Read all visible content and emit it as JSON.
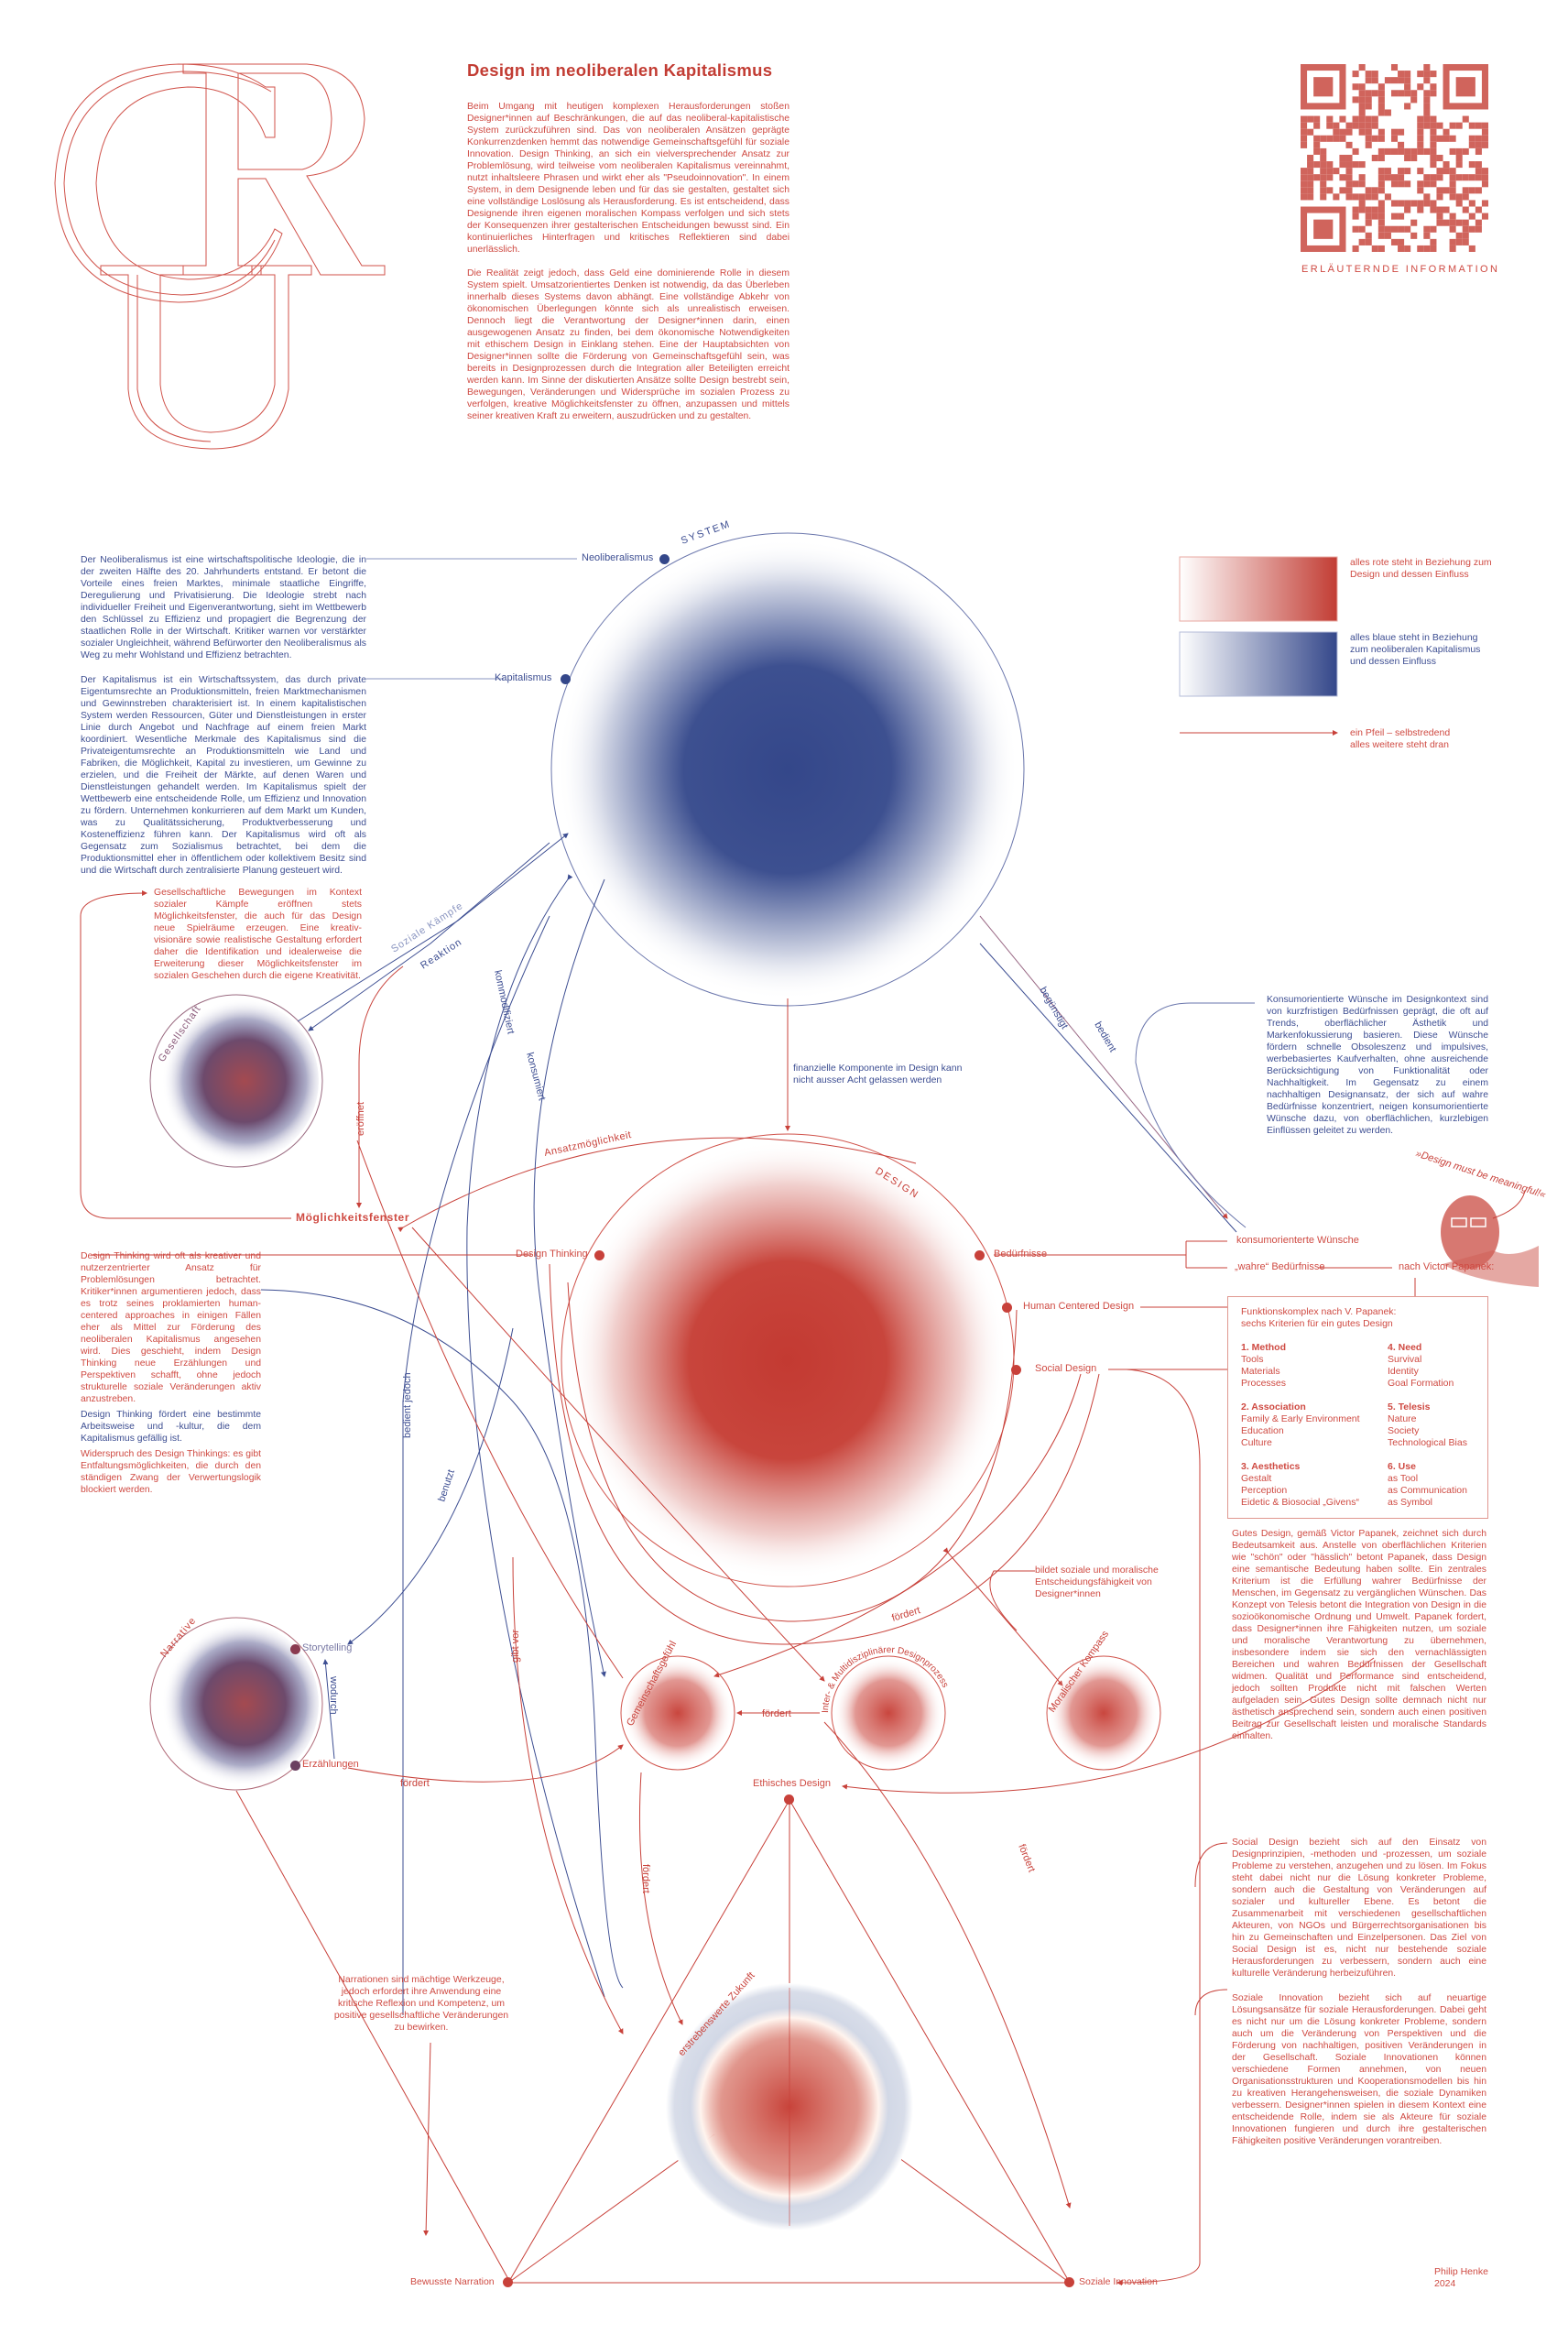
{
  "colors": {
    "red": "#c8413a",
    "blue": "#3d4e92",
    "red_light": "#e39a94",
    "blue_light": "#8a95c0"
  },
  "logo": {
    "letters": "CRU"
  },
  "header": {
    "title": "Design im neoliberalen Kapitalismus",
    "intro": [
      "Beim Umgang mit heutigen komplexen Herausforderungen stoßen Designer*innen auf Beschränkungen, die auf das neoliberal-kapitalistische System zurückzuführen sind. Das von neoliberalen Ansätzen geprägte Konkurrenzdenken hemmt das notwendige Gemeinschaftsgefühl für soziale Innovation. Design Thinking, an sich ein vielversprechender Ansatz zur Problemlösung, wird teilweise vom neoliberalen Kapitalismus vereinnahmt, nutzt inhaltsleere Phrasen und wirkt eher als \"Pseudoinnovation\". In einem System, in dem Designende leben und für das sie gestalten, gestaltet sich eine vollständige Loslösung als Herausforderung. Es ist entscheidend, dass Designende ihren eigenen moralischen Kompass verfolgen und sich stets der Konsequenzen ihrer gestalterischen Entscheidungen bewusst sind. Ein kontinuierliches Hinterfragen und kritisches Reflektieren sind dabei unerlässlich.",
      "Die Realität zeigt jedoch, dass Geld eine dominierende Rolle in diesem System spielt. Umsatzorientiertes Denken ist notwendig, da das Überleben innerhalb dieses Systems davon abhängt. Eine vollständige Abkehr von ökonomischen Überlegungen könnte sich als unrealistisch erweisen. Dennoch liegt die Verantwortung der Designer*innen darin, einen ausgewogenen Ansatz zu finden, bei dem ökonomische Notwendigkeiten mit ethischem Design in Einklang stehen. Eine der Hauptabsichten von Designer*innen sollte die Förderung von Gemeinschaftsgefühl sein, was bereits in Designprozessen durch die Integration aller Beteiligten erreicht werden kann. Im Sinne der diskutierten Ansätze sollte Design bestrebt sein, Bewegungen, Veränderungen und Widersprüche im sozialen Prozess zu verfolgen, kreative Möglichkeitsfenster zu öffnen, anzupassen und mittels seiner kreativen Kraft zu erweitern, auszudrücken und zu gestalten."
    ]
  },
  "qr": {
    "label": "ERLÄUTERNDE   INFORMATION"
  },
  "legend": {
    "red": "alles rote steht in Beziehung zum Design und dessen Einfluss",
    "blue": "alles blaue steht in Beziehung zum neoliberalen Kapitalismus und dessen Einfluss",
    "arrow": "ein Pfeil – selbstredend alles weitere steht dran"
  },
  "system": {
    "label": "SYSTEM",
    "nodes": {
      "neoliberalismus": "Neoliberalismus",
      "kapitalismus": "Kapitalismus"
    },
    "neoliberalismus_text": "Der Neoliberalismus ist eine wirtschaftspolitische Ideologie, die in der zweiten Hälfte des 20. Jahrhunderts entstand. Er betont die Vorteile eines freien Marktes, minimale staatliche Eingriffe, Deregulierung und Privatisierung. Die Ideologie strebt nach individueller Freiheit und Eigenverantwortung, sieht im Wettbewerb den Schlüssel zu Effizienz und propagiert die Begrenzung der staatlichen Rolle in der Wirtschaft. Kritiker warnen vor verstärkter sozialer Ungleichheit, während Befürworter den Neoliberalismus als Weg zu mehr Wohlstand und Effizienz betrachten.",
    "kapitalismus_text": "Der Kapitalismus ist ein Wirtschaftssystem, das durch private Eigentumsrechte an Produktionsmitteln, freien Marktmechanismen und Gewinnstreben charakterisiert ist. In einem kapitalistischen System werden Ressourcen, Güter und Dienstleistungen in erster Linie durch Angebot und Nachfrage auf einem freien Markt koordiniert. Wesentliche Merkmale des Kapitalismus sind die Privateigentumsrechte an Produktionsmitteln wie Land und Fabriken, die Möglichkeit, Kapital zu investieren, um Gewinne zu erzielen, und die Freiheit der Märkte, auf denen Waren und Dienstleistungen gehandelt werden. Im Kapitalismus spielt der Wettbewerb eine entscheidende Rolle, um Effizienz und Innovation zu fördern. Unternehmen konkurrieren auf dem Markt um Kunden, was zu Qualitätssicherung, Produktverbesserung und Kosteneffizienz führen kann. Der Kapitalismus wird oft als Gegensatz zum Sozialismus betrachtet, bei dem die Produktionsmittel eher in öffentlichem oder kollektivem Besitz sind und die Wirtschaft durch zentralisierte Planung gesteuert wird."
  },
  "gesellschaft": {
    "label": "Gesellschaft",
    "text": "Gesellschaftliche Bewegungen im Kontext sozialer Kämpfe eröffnen stets Möglichkeitsfenster, die auch für das Design neue Spielräume erzeugen. Eine kreativ-visionäre sowie realistische Gestaltung erfordert daher die Identifikation und idealerweise die Erweiterung dieser Möglichkeitsfenster im sozialen Geschehen durch die eigene Kreativität.",
    "moeglichkeitsfenster": "Möglichkeitsfenster"
  },
  "edges": {
    "soziale_kaempfe": "Soziale Kämpfe",
    "reaktion": "Reaktion",
    "eroeffnet": "eröffnet",
    "kommodifiziert": "kommodifiziert",
    "konsumiert": "konsumiert",
    "begünstigt": "begünstigt",
    "bedient": "bedient",
    "bedient_jedoch": "bedient jedoch",
    "benutzt": "benutzt",
    "gibt_vor": "gibt vor",
    "ansatz": "Ansatzmöglichkeit",
    "foerdert": "fördert",
    "wodurch": "wodurch"
  },
  "finanz": "finanzielle Komponente im Design kann nicht ausser Acht gelassen werden",
  "design": {
    "label": "DESIGN",
    "nodes": {
      "design_thinking": "Design Thinking",
      "beduerfnisse": "Bedürfnisse",
      "hcd": "Human Centered Design",
      "social_design": "Social Design"
    }
  },
  "konsum_text": "Konsumorientierte Wünsche im Designkontext sind von kurzfristigen Bedürfnissen geprägt, die oft auf Trends, oberflächlicher Ästhetik und Markenfokussierung basieren. Diese Wünsche fördern schnelle Obsoleszenz und impulsives, werbebasiertes Kaufverhalten, ohne ausreichende Berücksichtigung von Funktionalität oder Nachhaltigkeit. Im Gegensatz zu einem nachhaltigen Designansatz, der sich auf wahre Bedürfnisse konzentriert, neigen konsumorientierte Wünsche dazu, von oberflächlichen, kurzlebigen Einflüssen geleitet zu werden.",
  "beduerfnisse": {
    "konsum": "konsumorienterte Wünsche",
    "wahre": "„wahre“ Bedürfnisse",
    "papanek": "nach Victor Papanek:"
  },
  "quote": "»Design must be meaningful!«",
  "papanek_box": {
    "title": "Funktionskomplex nach V. Papanek: sechs Kriterien für ein gutes Design",
    "criteria": [
      {
        "head": "1. Method",
        "items": [
          "Tools",
          "Materials",
          "Processes"
        ]
      },
      {
        "head": "2. Association",
        "items": [
          "Family & Early Environment",
          "Education",
          "Culture"
        ]
      },
      {
        "head": "3. Aesthetics",
        "items": [
          "Gestalt",
          "Perception",
          "Eidetic & Biosocial „Givens“"
        ]
      },
      {
        "head": "4. Need",
        "items": [
          "Survival",
          "Identity",
          "Goal Formation"
        ]
      },
      {
        "head": "5. Telesis",
        "items": [
          "Nature",
          "Society",
          "Technological Bias"
        ]
      },
      {
        "head": "6. Use",
        "items": [
          "as Tool",
          "as Communication",
          "as Symbol"
        ]
      }
    ]
  },
  "gutes_design_text": "Gutes Design, gemäß Victor Papanek, zeichnet sich durch Bedeutsamkeit aus. Anstelle von oberflächlichen Kriterien wie \"schön\" oder \"hässlich\" betont Papanek, dass Design eine semantische Bedeutung haben sollte. Ein zentrales Kriterium ist die Erfüllung wahrer Bedürfnisse der Menschen, im Gegensatz zu vergänglichen Wünschen. Das Konzept von Telesis betont die Integration von Design in die sozioökonomische Ordnung und Umwelt. Papanek fordert, dass Designer*innen ihre Fähigkeiten nutzen, um soziale und moralische Verantwortung zu übernehmen, insbesondere indem sie sich den vernachlässigten Bereichen und wahren Bedürfnissen der Gesellschaft widmen. Qualität und Performance sind entscheidend, jedoch sollten Produkte nicht mit falschen Werten aufgeladen sein. Gutes Design sollte demnach nicht nur ästhetisch ansprechend sein, sondern auch einen positiven Beitrag zur Gesellschaft leisten und moralische Standards einhalten.",
  "design_thinking_text": {
    "critique": "Design Thinking wird oft als kreativer und nutzerzentrierter Ansatz für Problemlösungen betrachtet. Kritiker*innen argumentieren jedoch, dass es trotz seines proklamierten human-centered approaches in einigen Fällen eher als Mittel zur Förderung des neoliberalen Kapitalismus angesehen wird. Dies geschieht, indem Design Thinking neue Erzählungen und Perspektiven schafft, ohne jedoch strukturelle soziale Veränderungen aktiv anzustreben.",
    "culture": "Design Thinking fördert eine bestimmte Arbeitsweise und -kultur, die dem Kapitalismus gefällig ist.",
    "contradiction": "Widerspruch des Design Thinkings: es gibt Entfaltungsmöglichkeiten, die durch den ständigen Zwang der Verwertungslogik blockiert werden."
  },
  "narrative": {
    "label": "Narrative",
    "storytelling": "Storytelling",
    "erzaehlungen": "Erzählungen",
    "text": "Narrationen sind mächtige Werkzeuge, jedoch erfordert ihre Anwendung eine kritische Reflexion und Kompetenz, um positive gesellschaftliche Veränderungen zu bewirken."
  },
  "small_circles": {
    "gemeinschaft": "Gemeinschaftsgefühl",
    "inter": "Inter- & Multidisziplinärer Designprozess",
    "moral": "Moralischer Kompass"
  },
  "moral_text": "bildet soziale und moralische Entscheidungsfähigkeit von Designer*innen",
  "triangle": {
    "top": "Ethisches Design",
    "center": "erstrebenswerte Zukunft",
    "left": "Bewusste Narration",
    "right": "Soziale Innovation"
  },
  "social_design_text": "Social Design bezieht sich auf den Einsatz von Designprinzipien, -methoden und -prozessen, um soziale Probleme zu verstehen, anzugehen und zu lösen. Im Fokus steht dabei nicht nur die Lösung konkreter Probleme, sondern auch die Gestaltung von Veränderungen auf sozialer und kultureller Ebene. Es betont die Zusammenarbeit mit verschiedenen gesellschaftlichen Akteuren, von NGOs und Bürgerrechtsorganisationen bis hin zu Gemeinschaften und Einzelpersonen. Das Ziel von Social Design ist es, nicht nur bestehende soziale Herausforderungen zu verbessern, sondern auch eine kulturelle Veränderung herbeizuführen.",
  "soziale_innovation_text": "Soziale Innovation bezieht sich auf neuartige Lösungsansätze für soziale Herausforderungen. Dabei geht es nicht nur um die Lösung konkreter Probleme, sondern auch um die Veränderung von Perspektiven und die Förderung von nachhaltigen, positiven Veränderungen in der Gesellschaft. Soziale Innovationen können verschiedene Formen annehmen, von neuen Organisationsstrukturen und Kooperationsmodellen bis hin zu kreativen Herangehensweisen, die soziale Dynamiken verbessern. Designer*innen spielen in diesem Kontext eine entscheidende Rolle, indem sie als Akteure für soziale Innovationen fungieren und durch ihre gestalterischen Fähigkeiten positive Veränderungen vorantreiben.",
  "credits": {
    "author": "Philip Henke",
    "year": "2024"
  }
}
